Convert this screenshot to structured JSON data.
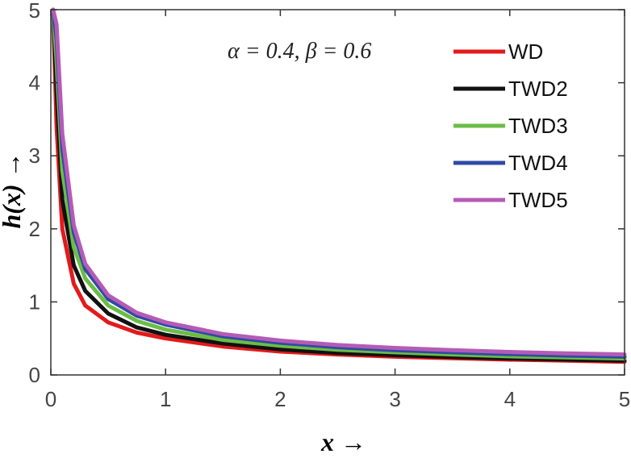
{
  "chart_data": {
    "type": "line",
    "xlabel": "x →",
    "ylabel": "h(x) →",
    "annotation": "α = 0.4, β = 0.6",
    "xlim": [
      0,
      5
    ],
    "ylim": [
      0,
      5
    ],
    "xticks": [
      "0",
      "1",
      "2",
      "3",
      "4",
      "5"
    ],
    "yticks": [
      "0",
      "1",
      "2",
      "3",
      "4",
      "5"
    ],
    "grid": false,
    "legend_position": "top-right",
    "x": [
      0.02,
      0.05,
      0.1,
      0.2,
      0.3,
      0.5,
      0.75,
      1,
      1.5,
      2,
      2.5,
      3,
      3.5,
      4,
      4.5,
      5
    ],
    "series": [
      {
        "name": "WD",
        "color": "#e31a1c",
        "values": [
          5.0,
          3.4,
          2.0,
          1.25,
          0.95,
          0.72,
          0.58,
          0.5,
          0.39,
          0.32,
          0.28,
          0.25,
          0.23,
          0.21,
          0.195,
          0.18
        ]
      },
      {
        "name": "TWD2",
        "color": "#111111",
        "values": [
          5.0,
          3.9,
          2.4,
          1.5,
          1.15,
          0.84,
          0.65,
          0.55,
          0.43,
          0.35,
          0.3,
          0.27,
          0.245,
          0.225,
          0.21,
          0.195
        ]
      },
      {
        "name": "TWD3",
        "color": "#6bbd45",
        "values": [
          5.0,
          4.3,
          2.8,
          1.75,
          1.32,
          0.95,
          0.74,
          0.62,
          0.48,
          0.4,
          0.345,
          0.31,
          0.28,
          0.255,
          0.24,
          0.225
        ]
      },
      {
        "name": "TWD4",
        "color": "#2f4aa3",
        "values": [
          5.0,
          4.6,
          3.1,
          1.95,
          1.45,
          1.04,
          0.81,
          0.69,
          0.53,
          0.44,
          0.38,
          0.34,
          0.31,
          0.285,
          0.265,
          0.25
        ]
      },
      {
        "name": "TWD5",
        "color": "#b55bb7",
        "values": [
          5.0,
          4.8,
          3.3,
          2.05,
          1.52,
          1.09,
          0.85,
          0.72,
          0.56,
          0.47,
          0.41,
          0.37,
          0.34,
          0.315,
          0.295,
          0.28
        ]
      }
    ]
  }
}
